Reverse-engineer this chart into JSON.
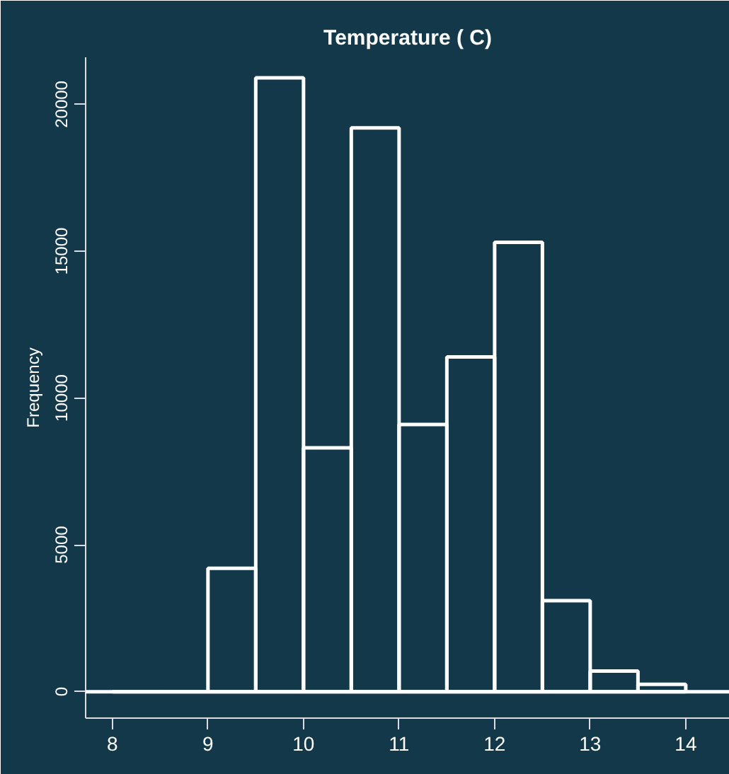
{
  "chart_data": {
    "type": "histogram",
    "title": "Temperature ( C)",
    "ylabel": "Frequency",
    "bins": [
      8,
      8.5,
      9,
      9.5,
      10,
      10.5,
      11,
      11.5,
      12,
      12.5,
      13,
      13.5,
      14
    ],
    "values": [
      0,
      0,
      4200,
      20900,
      8300,
      19200,
      9100,
      11400,
      15300,
      3100,
      700,
      250
    ],
    "color": "#ffffff",
    "xlim": [
      7.72,
      14.46
    ],
    "ylim": [
      -900,
      21600
    ],
    "xticks": [
      8,
      9,
      10,
      11,
      12,
      13,
      14
    ],
    "yticks": [
      0,
      5000,
      10000,
      15000,
      20000
    ],
    "ref_lines": [
      {
        "axis": "y",
        "value": 0,
        "label": null,
        "color": "#ffffff"
      }
    ],
    "grid": false
  }
}
